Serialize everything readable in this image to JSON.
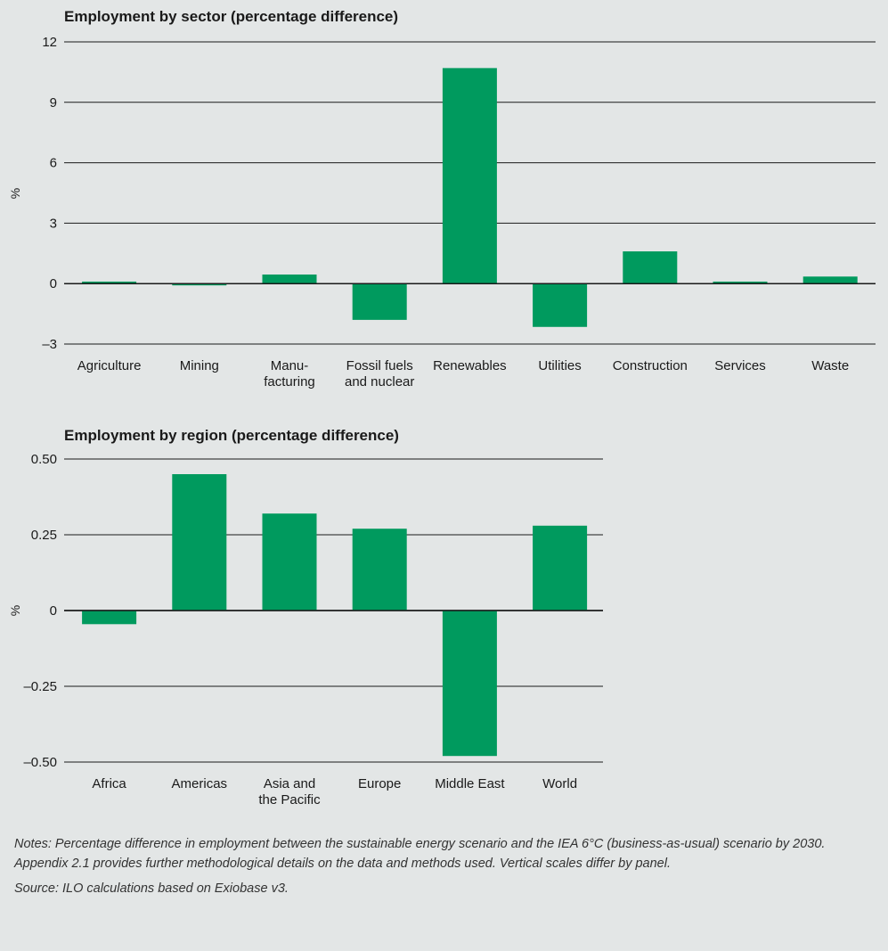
{
  "colors": {
    "bar": "#009a5e",
    "background": "#e3e6e6"
  },
  "chart_data": [
    {
      "type": "bar",
      "title": "Employment by sector (percentage difference)",
      "ylabel": "%",
      "ylim": [
        -3,
        12
      ],
      "yticks": [
        12,
        9,
        6,
        3,
        0,
        -3
      ],
      "ytick_labels": [
        "12",
        "9",
        "6",
        "3",
        "0",
        "–3"
      ],
      "categories": [
        [
          "Agriculture"
        ],
        [
          "Mining"
        ],
        [
          "Manu-",
          "facturing"
        ],
        [
          "Fossil fuels",
          "and nuclear"
        ],
        [
          "Renewables"
        ],
        [
          "Utilities"
        ],
        [
          "Construction"
        ],
        [
          "Services"
        ],
        [
          "Waste"
        ]
      ],
      "values": [
        0.1,
        -0.05,
        0.45,
        -1.8,
        10.7,
        -2.15,
        1.6,
        0.1,
        0.35
      ]
    },
    {
      "type": "bar",
      "title": "Employment by region (percentage difference)",
      "ylabel": "%",
      "ylim": [
        -0.5,
        0.5
      ],
      "yticks": [
        0.5,
        0.25,
        0,
        -0.25,
        -0.5
      ],
      "ytick_labels": [
        "0.50",
        "0.25",
        "0",
        "–0.25",
        "–0.50"
      ],
      "categories": [
        [
          "Africa"
        ],
        [
          "Americas"
        ],
        [
          "Asia and",
          "the Pacific"
        ],
        [
          "Europe"
        ],
        [
          "Middle East"
        ],
        [
          "World"
        ]
      ],
      "values": [
        -0.045,
        0.45,
        0.32,
        0.27,
        -0.48,
        0.28
      ]
    }
  ],
  "notes": {
    "notes_text": "Notes: Percentage difference in employment between the sustainable energy scenario and the IEA 6°C (business-as-usual) scenario by 2030. Appendix 2.1 provides further methodological details on the data and methods used. Vertical scales differ by panel.",
    "source_text": "Source: ILO calculations based on Exiobase v3."
  }
}
